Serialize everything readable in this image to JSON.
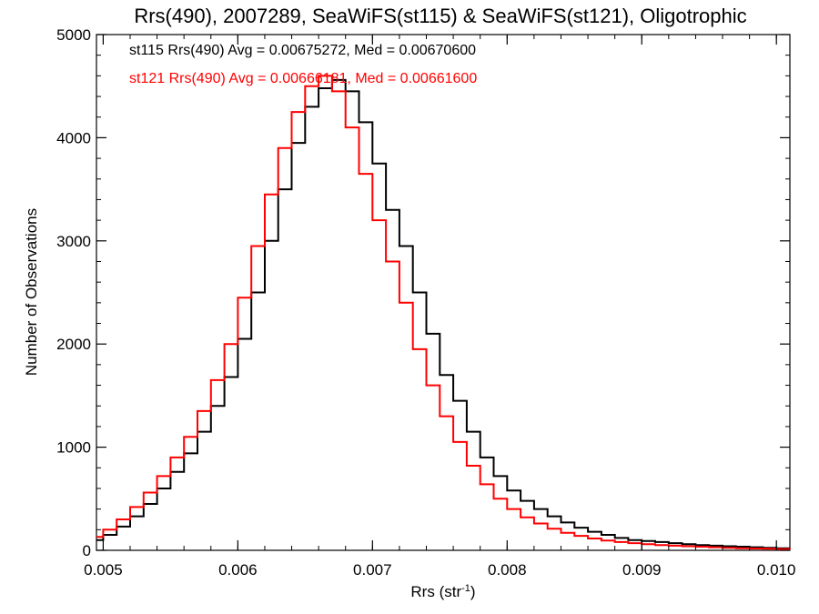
{
  "chart_data": {
    "type": "line",
    "title": "Rrs(490), 2007289, SeaWiFS(st115) & SeaWiFS(st121), Oligotrophic",
    "xlabel": "Rrs (str",
    "xlabel_sup": "-1",
    "xlabel_close": ")",
    "ylabel": "Number of Observations",
    "xlim": [
      0.00495,
      0.0101
    ],
    "ylim": [
      0,
      5000
    ],
    "xticks": [
      {
        "value": 0.005,
        "label": "0.005"
      },
      {
        "value": 0.006,
        "label": "0.006"
      },
      {
        "value": 0.007,
        "label": "0.007"
      },
      {
        "value": 0.008,
        "label": "0.008"
      },
      {
        "value": 0.009,
        "label": "0.009"
      },
      {
        "value": 0.01,
        "label": "0.010"
      }
    ],
    "yticks": [
      {
        "value": 0,
        "label": "0"
      },
      {
        "value": 1000,
        "label": "1000"
      },
      {
        "value": 2000,
        "label": "2000"
      },
      {
        "value": 3000,
        "label": "3000"
      },
      {
        "value": 4000,
        "label": "4000"
      },
      {
        "value": 5000,
        "label": "5000"
      }
    ],
    "grid": false,
    "legend_position": "top-left",
    "series": [
      {
        "name": "st115",
        "legend": "st115 Rrs(490) Avg = 0.00675272, Med = 0.00670600",
        "color": "#000000",
        "x": [
          0.00495,
          0.005,
          0.0051,
          0.0052,
          0.0053,
          0.0054,
          0.0055,
          0.0056,
          0.0057,
          0.0058,
          0.0059,
          0.006,
          0.0061,
          0.0062,
          0.0063,
          0.0064,
          0.0065,
          0.0066,
          0.0067,
          0.0068,
          0.0069,
          0.007,
          0.0071,
          0.0072,
          0.0073,
          0.0074,
          0.0075,
          0.0076,
          0.0077,
          0.0078,
          0.0079,
          0.008,
          0.0081,
          0.0082,
          0.0083,
          0.0084,
          0.0085,
          0.0086,
          0.0087,
          0.0088,
          0.0089,
          0.009,
          0.0091,
          0.0092,
          0.0093,
          0.0094,
          0.0095,
          0.0096,
          0.0097,
          0.0098,
          0.0099,
          0.01,
          0.0101
        ],
        "y": [
          100,
          150,
          230,
          330,
          450,
          600,
          760,
          940,
          1150,
          1400,
          1680,
          2050,
          2500,
          3000,
          3500,
          3950,
          4300,
          4480,
          4560,
          4450,
          4150,
          3750,
          3300,
          2950,
          2500,
          2100,
          1700,
          1450,
          1150,
          900,
          720,
          580,
          480,
          400,
          330,
          270,
          220,
          180,
          150,
          120,
          100,
          90,
          80,
          70,
          60,
          50,
          45,
          40,
          35,
          30,
          25,
          20,
          20
        ]
      },
      {
        "name": "st121",
        "legend": "st121 Rrs(490) Avg = 0.00666181, Med = 0.00661600",
        "color": "#ff0000",
        "x": [
          0.00495,
          0.005,
          0.0051,
          0.0052,
          0.0053,
          0.0054,
          0.0055,
          0.0056,
          0.0057,
          0.0058,
          0.0059,
          0.006,
          0.0061,
          0.0062,
          0.0063,
          0.0064,
          0.0065,
          0.0066,
          0.0067,
          0.0068,
          0.0069,
          0.007,
          0.0071,
          0.0072,
          0.0073,
          0.0074,
          0.0075,
          0.0076,
          0.0077,
          0.0078,
          0.0079,
          0.008,
          0.0081,
          0.0082,
          0.0083,
          0.0084,
          0.0085,
          0.0086,
          0.0087,
          0.0088,
          0.0089,
          0.009,
          0.0091,
          0.0092,
          0.0093,
          0.0094,
          0.0095,
          0.0096,
          0.0097,
          0.0098,
          0.0099,
          0.01,
          0.0101
        ],
        "y": [
          130,
          200,
          300,
          420,
          560,
          720,
          900,
          1100,
          1350,
          1650,
          2000,
          2450,
          2950,
          3450,
          3900,
          4250,
          4500,
          4600,
          4450,
          4100,
          3650,
          3200,
          2800,
          2400,
          1950,
          1600,
          1300,
          1050,
          820,
          640,
          500,
          400,
          320,
          260,
          210,
          170,
          140,
          115,
          95,
          80,
          70,
          60,
          50,
          45,
          40,
          35,
          30,
          25,
          20,
          18,
          15,
          12,
          10
        ]
      }
    ]
  }
}
